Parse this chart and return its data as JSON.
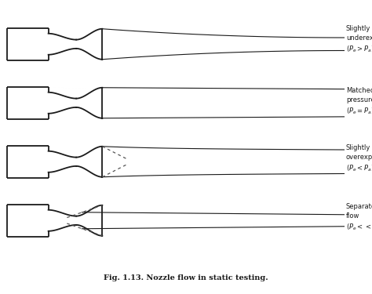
{
  "title": "Fig. 1.13. Nozzle flow in static testing.",
  "labels": [
    "Slightly\nunderexpanded\n$(P_e > P_a)$",
    "Matched\npressure\n$(P_e = P_a)$",
    "Slightly\noverexpanded\n$(P_e < P_a)$",
    "Separated\nflow\n$(P_e << P_a)$"
  ],
  "bg_color": "#ffffff",
  "line_color": "#1a1a1a",
  "dashed_color": "#555555",
  "figure_width": 4.74,
  "figure_height": 3.75,
  "dpi": 100
}
